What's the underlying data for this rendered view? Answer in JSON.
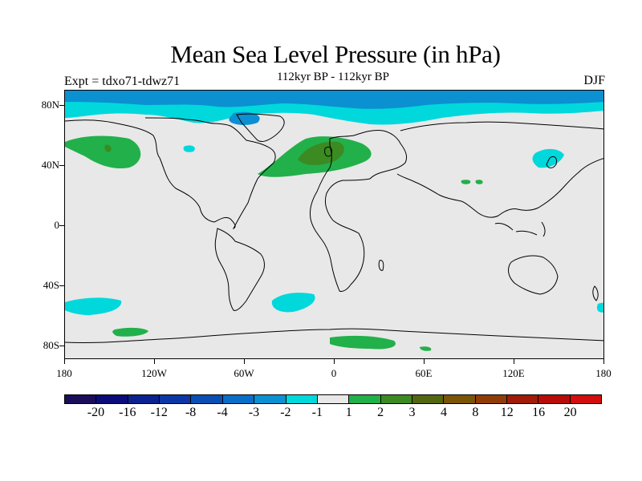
{
  "title": "Mean Sea Level Pressure (in hPa)",
  "subtitle": "112kyr BP - 112kyr BP",
  "experiment": "Expt = tdxo71-tdwz71",
  "season": "DJF",
  "lat_labels": [
    "80N",
    "40N",
    "0",
    "40S",
    "80S"
  ],
  "lon_labels": [
    "180",
    "120W",
    "60W",
    "0",
    "60E",
    "120E",
    "180"
  ],
  "colorbar": {
    "colors": [
      "#1c0d5a",
      "#0b0b7a",
      "#0b2291",
      "#0d37a6",
      "#0b4fb6",
      "#0a6ec6",
      "#0b90d2",
      "#00d8dc",
      "#e8e8e8",
      "#22b04a",
      "#3c8a22",
      "#556612",
      "#7a5408",
      "#903c08",
      "#a01c08",
      "#b80c08",
      "#d20e0e"
    ],
    "labels": [
      "-20",
      "-16",
      "-12",
      "-8",
      "-4",
      "-3",
      "-2",
      "-1",
      "1",
      "2",
      "3",
      "4",
      "8",
      "12",
      "16",
      "20"
    ]
  }
}
